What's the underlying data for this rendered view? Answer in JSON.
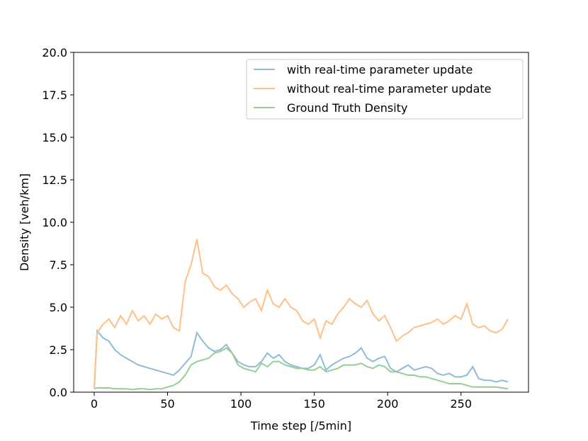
{
  "chart_data": {
    "type": "line",
    "xlabel": "Time step [/5min]",
    "ylabel": "Density [veh/km]",
    "x": [
      0,
      2,
      6,
      10,
      14,
      18,
      22,
      26,
      30,
      34,
      38,
      42,
      46,
      50,
      54,
      58,
      62,
      66,
      70,
      74,
      78,
      82,
      86,
      90,
      94,
      98,
      102,
      106,
      110,
      114,
      118,
      122,
      126,
      130,
      134,
      138,
      142,
      146,
      150,
      154,
      158,
      162,
      166,
      170,
      174,
      178,
      182,
      186,
      190,
      194,
      198,
      202,
      206,
      210,
      214,
      218,
      222,
      226,
      230,
      234,
      238,
      242,
      246,
      250,
      254,
      258,
      262,
      266,
      270,
      274,
      278,
      282
    ],
    "series": [
      {
        "name": "with real-time parameter update",
        "color": "#8fbbd9",
        "values": [
          0.2,
          3.6,
          3.2,
          3.0,
          2.5,
          2.2,
          2.0,
          1.8,
          1.6,
          1.5,
          1.4,
          1.3,
          1.2,
          1.1,
          1.0,
          1.3,
          1.7,
          2.1,
          3.5,
          3.0,
          2.6,
          2.4,
          2.5,
          2.8,
          2.3,
          1.8,
          1.6,
          1.5,
          1.5,
          1.8,
          2.3,
          2.0,
          2.2,
          1.8,
          1.6,
          1.5,
          1.4,
          1.4,
          1.6,
          2.2,
          1.3,
          1.6,
          1.8,
          2.0,
          2.1,
          2.3,
          2.6,
          2.0,
          1.8,
          2.0,
          2.1,
          1.4,
          1.2,
          1.4,
          1.6,
          1.3,
          1.4,
          1.5,
          1.4,
          1.1,
          1.0,
          1.1,
          0.9,
          0.9,
          1.0,
          1.5,
          0.8,
          0.7,
          0.7,
          0.6,
          0.7,
          0.6
        ]
      },
      {
        "name": "without real-time parameter update",
        "color": "#ffbf86",
        "values": [
          0.2,
          3.5,
          4.0,
          4.3,
          3.8,
          4.5,
          4.0,
          4.8,
          4.2,
          4.5,
          4.0,
          4.6,
          4.3,
          4.5,
          3.8,
          3.6,
          6.5,
          7.5,
          9.0,
          7.0,
          6.8,
          6.2,
          6.0,
          6.3,
          5.8,
          5.5,
          5.0,
          5.3,
          5.5,
          4.8,
          6.0,
          5.2,
          5.0,
          5.5,
          5.0,
          4.8,
          4.2,
          4.0,
          4.3,
          3.2,
          4.2,
          4.0,
          4.6,
          5.0,
          5.5,
          5.2,
          5.0,
          5.4,
          4.6,
          4.2,
          4.5,
          3.8,
          3.0,
          3.3,
          3.5,
          3.8,
          3.9,
          4.0,
          4.1,
          4.3,
          4.0,
          4.2,
          4.5,
          4.3,
          5.2,
          4.0,
          3.8,
          3.9,
          3.6,
          3.5,
          3.7,
          4.3
        ]
      },
      {
        "name": "Ground Truth Density",
        "color": "#95cf95",
        "values": [
          0.2,
          0.25,
          0.25,
          0.25,
          0.2,
          0.2,
          0.2,
          0.15,
          0.2,
          0.2,
          0.15,
          0.2,
          0.2,
          0.3,
          0.4,
          0.6,
          1.0,
          1.6,
          1.8,
          1.9,
          2.0,
          2.3,
          2.4,
          2.6,
          2.3,
          1.6,
          1.4,
          1.3,
          1.2,
          1.7,
          1.5,
          1.8,
          1.8,
          1.6,
          1.5,
          1.4,
          1.4,
          1.3,
          1.3,
          1.5,
          1.2,
          1.3,
          1.4,
          1.6,
          1.6,
          1.6,
          1.7,
          1.5,
          1.4,
          1.6,
          1.5,
          1.2,
          1.2,
          1.1,
          1.0,
          1.0,
          0.9,
          0.9,
          0.8,
          0.7,
          0.6,
          0.5,
          0.5,
          0.5,
          0.4,
          0.3,
          0.3,
          0.3,
          0.3,
          0.3,
          0.25,
          0.2
        ]
      }
    ],
    "xlim": [
      -14,
      296
    ],
    "ylim": [
      0,
      20
    ],
    "xticks": [
      0,
      50,
      100,
      150,
      200,
      250
    ],
    "yticks": [
      {
        "value": 0,
        "label": "0.0"
      },
      {
        "value": 2.5,
        "label": "2.5"
      },
      {
        "value": 5,
        "label": "5.0"
      },
      {
        "value": 7.5,
        "label": "7.5"
      },
      {
        "value": 10,
        "label": "10.0"
      },
      {
        "value": 12.5,
        "label": "12.5"
      },
      {
        "value": 15,
        "label": "15.0"
      },
      {
        "value": 17.5,
        "label": "17.5"
      },
      {
        "value": 20,
        "label": "20.0"
      }
    ],
    "legend": "upper right"
  }
}
